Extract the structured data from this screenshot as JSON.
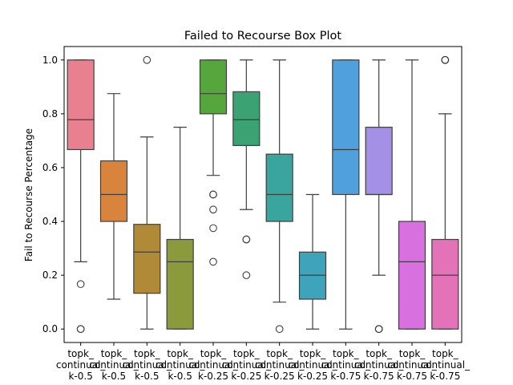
{
  "chart_data": {
    "type": "box",
    "title": "Failed to Recourse Box Plot",
    "xlabel": "",
    "ylabel": "Fail to Recourse Percentage",
    "ylim": [
      -0.05,
      1.05
    ],
    "yticks": [
      0.0,
      0.2,
      0.4,
      0.6,
      0.8,
      1.0
    ],
    "ytick_labels": [
      "0.0",
      "0.2",
      "0.4",
      "0.6",
      "0.8",
      "1.0"
    ],
    "grid": false,
    "legend": "none",
    "categories": [
      {
        "lines": [
          "topk_",
          "continual_",
          "k-0.5"
        ]
      },
      {
        "lines": [
          "topk_",
          "continual_",
          "k-0.5"
        ]
      },
      {
        "lines": [
          "topk_",
          "continual_",
          "k-0.5"
        ]
      },
      {
        "lines": [
          "topk_",
          "continual_",
          "k-0.5"
        ]
      },
      {
        "lines": [
          "topk_",
          "continual_",
          "k-0.25"
        ]
      },
      {
        "lines": [
          "topk_",
          "continual_",
          "k-0.25"
        ]
      },
      {
        "lines": [
          "topk_",
          "continual_",
          "k-0.25"
        ]
      },
      {
        "lines": [
          "topk_",
          "continual_",
          "k-0.25"
        ]
      },
      {
        "lines": [
          "topk_",
          "continual_",
          "k-0.75"
        ]
      },
      {
        "lines": [
          "topk_",
          "continual_",
          "k-0.75"
        ]
      },
      {
        "lines": [
          "topk_",
          "continual_",
          "k-0.75"
        ]
      },
      {
        "lines": [
          "topk_",
          "continual_",
          "k-0.75"
        ]
      }
    ],
    "boxes": [
      {
        "q1": 0.667,
        "median": 0.778,
        "q3": 1.0,
        "whislo": 0.25,
        "whishi": 1.0,
        "fliers": [
          0.167,
          0.0,
          0.0
        ],
        "color": "#e8808f"
      },
      {
        "q1": 0.4,
        "median": 0.5,
        "q3": 0.625,
        "whislo": 0.111,
        "whishi": 0.875,
        "fliers": [],
        "color": "#d9843d"
      },
      {
        "q1": 0.133,
        "median": 0.286,
        "q3": 0.389,
        "whislo": 0.0,
        "whishi": 0.714,
        "fliers": [
          1.0
        ],
        "color": "#b18a38"
      },
      {
        "q1": 0.0,
        "median": 0.25,
        "q3": 0.333,
        "whislo": 0.0,
        "whishi": 0.75,
        "fliers": [],
        "color": "#8b9a3a"
      },
      {
        "q1": 0.8,
        "median": 0.875,
        "q3": 1.0,
        "whislo": 0.571,
        "whishi": 1.0,
        "fliers": [
          0.5,
          0.5,
          0.444,
          0.375,
          0.25
        ],
        "color": "#55a63c"
      },
      {
        "q1": 0.682,
        "median": 0.778,
        "q3": 0.882,
        "whislo": 0.444,
        "whishi": 1.0,
        "fliers": [
          0.333,
          0.333,
          0.2
        ],
        "color": "#3aa273"
      },
      {
        "q1": 0.4,
        "median": 0.5,
        "q3": 0.65,
        "whislo": 0.1,
        "whishi": 1.0,
        "fliers": [
          0.0
        ],
        "color": "#3aa59c"
      },
      {
        "q1": 0.111,
        "median": 0.2,
        "q3": 0.286,
        "whislo": 0.0,
        "whishi": 0.5,
        "fliers": [],
        "color": "#3ea4bc"
      },
      {
        "q1": 0.5,
        "median": 0.667,
        "q3": 1.0,
        "whislo": 0.0,
        "whishi": 1.0,
        "fliers": [],
        "color": "#50a0dd"
      },
      {
        "q1": 0.5,
        "median": 0.5,
        "q3": 0.75,
        "whislo": 0.2,
        "whishi": 1.0,
        "fliers": [
          0.0,
          0.0,
          0.0
        ],
        "color": "#a590e8"
      },
      {
        "q1": 0.0,
        "median": 0.25,
        "q3": 0.4,
        "whislo": 0.0,
        "whishi": 1.0,
        "fliers": [],
        "color": "#d870e0"
      },
      {
        "q1": 0.0,
        "median": 0.2,
        "q3": 0.333,
        "whislo": 0.0,
        "whishi": 0.8,
        "fliers": [
          1.0,
          1.0,
          1.0
        ],
        "color": "#e372b8"
      }
    ]
  }
}
